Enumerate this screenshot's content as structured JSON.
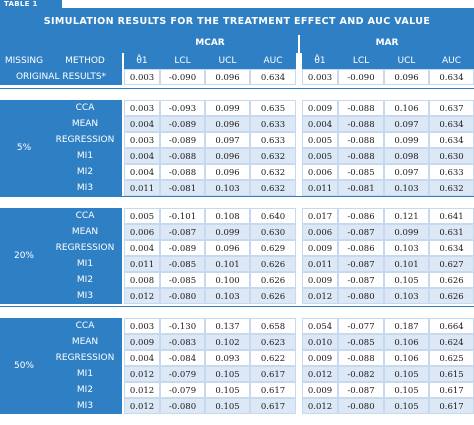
{
  "table_label": "TABLE 1",
  "title": "SIMULATION RESULTS FOR THE TREATMENT EFFECT AND AUC VALUE",
  "headers": {
    "missing": "MISSING",
    "method": "METHOD",
    "mcar": "MCAR",
    "mar": "MAR",
    "cols": [
      "θ̂1",
      "LCL",
      "UCL",
      "AUC"
    ]
  },
  "original": {
    "label": "ORIGINAL RESULTS*",
    "mcar": [
      "0.003",
      "-0.090",
      "0.096",
      "0.634"
    ],
    "mar": [
      "0.003",
      "-0.090",
      "0.096",
      "0.634"
    ]
  },
  "groups": [
    {
      "label": "5%",
      "rows": [
        {
          "method": "CCA",
          "mcar": [
            "0.003",
            "-0.093",
            "0.099",
            "0.635"
          ],
          "mar": [
            "0.009",
            "-0.088",
            "0.106",
            "0.637"
          ]
        },
        {
          "method": "MEAN",
          "mcar": [
            "0.004",
            "-0.089",
            "0.096",
            "0.633"
          ],
          "mar": [
            "0.004",
            "-0.088",
            "0.097",
            "0.634"
          ]
        },
        {
          "method": "REGRESSION",
          "mcar": [
            "0.003",
            "-0.089",
            "0.097",
            "0.633"
          ],
          "mar": [
            "0.005",
            "-0.088",
            "0.099",
            "0.634"
          ]
        },
        {
          "method": "MI1",
          "mcar": [
            "0.004",
            "-0.088",
            "0.096",
            "0.632"
          ],
          "mar": [
            "0.005",
            "-0.088",
            "0.098",
            "0.630"
          ]
        },
        {
          "method": "MI2",
          "mcar": [
            "0.004",
            "-0.088",
            "0.096",
            "0.632"
          ],
          "mar": [
            "0.006",
            "-0.085",
            "0.097",
            "0.633"
          ]
        },
        {
          "method": "MI3",
          "mcar": [
            "0.011",
            "-0.081",
            "0.103",
            "0.632"
          ],
          "mar": [
            "0.011",
            "-0.081",
            "0.103",
            "0.632"
          ]
        }
      ]
    },
    {
      "label": "20%",
      "rows": [
        {
          "method": "CCA",
          "mcar": [
            "0.005",
            "-0.101",
            "0.108",
            "0.640"
          ],
          "mar": [
            "0.017",
            "-0.086",
            "0.121",
            "0.641"
          ]
        },
        {
          "method": "MEAN",
          "mcar": [
            "0.006",
            "-0.087",
            "0.099",
            "0.630"
          ],
          "mar": [
            "0.006",
            "-0.087",
            "0.099",
            "0.631"
          ]
        },
        {
          "method": "REGRESSION",
          "mcar": [
            "0.004",
            "-0.089",
            "0.096",
            "0.629"
          ],
          "mar": [
            "0.009",
            "-0.086",
            "0.103",
            "0.634"
          ]
        },
        {
          "method": "MI1",
          "mcar": [
            "0.011",
            "-0.085",
            "0.101",
            "0.626"
          ],
          "mar": [
            "0.011",
            "-0.087",
            "0.101",
            "0.627"
          ]
        },
        {
          "method": "MI2",
          "mcar": [
            "0.008",
            "-0.085",
            "0.100",
            "0.626"
          ],
          "mar": [
            "0.009",
            "-0.087",
            "0.105",
            "0.626"
          ]
        },
        {
          "method": "MI3",
          "mcar": [
            "0.012",
            "-0.080",
            "0.103",
            "0.626"
          ],
          "mar": [
            "0.012",
            "-0.080",
            "0.103",
            "0.626"
          ]
        }
      ]
    },
    {
      "label": "50%",
      "rows": [
        {
          "method": "CCA",
          "mcar": [
            "0.003",
            "-0.130",
            "0.137",
            "0.658"
          ],
          "mar": [
            "0.054",
            "-0.077",
            "0.187",
            "0.664"
          ]
        },
        {
          "method": "MEAN",
          "mcar": [
            "0.009",
            "-0.083",
            "0.102",
            "0.623"
          ],
          "mar": [
            "0.010",
            "-0.085",
            "0.106",
            "0.624"
          ]
        },
        {
          "method": "REGRESSION",
          "mcar": [
            "0.004",
            "-0.084",
            "0.093",
            "0.622"
          ],
          "mar": [
            "0.009",
            "-0.088",
            "0.106",
            "0.625"
          ]
        },
        {
          "method": "MI1",
          "mcar": [
            "0.012",
            "-0.079",
            "0.105",
            "0.617"
          ],
          "mar": [
            "0.012",
            "-0.082",
            "0.105",
            "0.615"
          ]
        },
        {
          "method": "MI2",
          "mcar": [
            "0.012",
            "-0.079",
            "0.105",
            "0.617"
          ],
          "mar": [
            "0.009",
            "-0.087",
            "0.105",
            "0.617"
          ]
        },
        {
          "method": "MI3",
          "mcar": [
            "0.012",
            "-0.080",
            "0.105",
            "0.617"
          ],
          "mar": [
            "0.012",
            "-0.080",
            "0.105",
            "0.617"
          ]
        }
      ]
    }
  ]
}
